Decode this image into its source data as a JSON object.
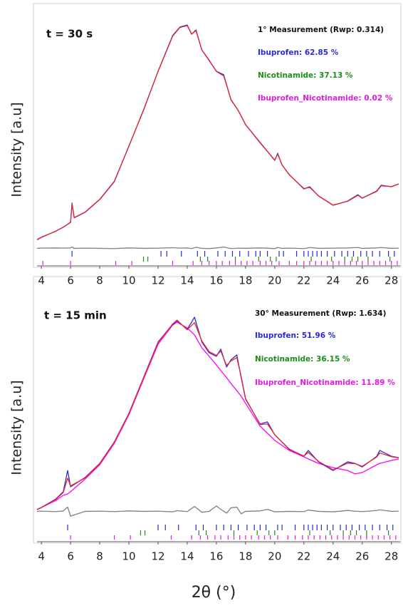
{
  "chart_data": [
    {
      "type": "line",
      "annotation": "t = 30 s",
      "measurement": "1° Measurement (Rwp: 0.314)",
      "ylabel": "Intensity [a.u]",
      "xlim": [
        3.7,
        28.6
      ],
      "ylim": [
        -10,
        105
      ],
      "xticks": [
        4,
        6,
        8,
        10,
        12,
        14,
        16,
        18,
        20,
        22,
        24,
        26,
        28
      ],
      "x": [
        3.7,
        4,
        5,
        5.5,
        6,
        6.1,
        6.25,
        7,
        8,
        9,
        10,
        11,
        12,
        13,
        13.5,
        14,
        14.3,
        14.6,
        15,
        15.5,
        16,
        16.5,
        17,
        17.5,
        18,
        19,
        20,
        20.2,
        20.5,
        21,
        22,
        22.4,
        23,
        24,
        25,
        25.7,
        26,
        27,
        27.3,
        28,
        28.5
      ],
      "series": [
        {
          "color": "#2a2ad8",
          "values": [
            2.5,
            3.6,
            6.5,
            8.2,
            10.5,
            19.2,
            12.5,
            15,
            20.8,
            28.9,
            45.1,
            61.3,
            79.1,
            95.3,
            99.2,
            100.1,
            95.9,
            97.9,
            88.8,
            84,
            79.1,
            77.5,
            66.1,
            61.3,
            54.8,
            46.7,
            38.6,
            41.8,
            36.5,
            32.1,
            25.6,
            26.6,
            22.4,
            18.2,
            20.1,
            23,
            21.4,
            24.7,
            27.3,
            26.6,
            27.9
          ]
        },
        {
          "color": "#e8262a",
          "values": [
            2.6,
            3.7,
            6.4,
            8.3,
            10.4,
            18.7,
            12.6,
            15.1,
            20.9,
            29.1,
            45.0,
            61.5,
            79.0,
            95.0,
            99.0,
            99.8,
            96.1,
            97.5,
            88.9,
            84.2,
            79.0,
            77.0,
            66.3,
            61.2,
            54.9,
            46.5,
            38.8,
            41.4,
            36.6,
            32.0,
            25.8,
            26.3,
            22.5,
            18.3,
            20.0,
            22.7,
            21.5,
            24.5,
            27.0,
            26.7,
            27.8
          ]
        },
        {
          "color": "#808080",
          "values": [
            -1.4,
            -1.3,
            -1.2,
            -1.3,
            -1.2,
            -0.8,
            -1.4,
            -1.3,
            -1.4,
            -1.5,
            -1.2,
            -1.4,
            -1.3,
            -1.1,
            -1.3,
            -1.2,
            -1.5,
            -0.9,
            -1.4,
            -1.5,
            -1.2,
            -0.8,
            -1.5,
            -1.3,
            -1.4,
            -1.2,
            -1.5,
            -1.0,
            -1.4,
            -1.3,
            -1.5,
            -1.0,
            -1.4,
            -1.3,
            -1.2,
            -1.0,
            -1.4,
            -1.2,
            -1.0,
            -1.4,
            -1.3
          ]
        }
      ],
      "phases": [
        {
          "label": "Ibuprofen: 62.85 %",
          "color": "#2a2ad8",
          "reflections": [
            6.1,
            12.2,
            12.6,
            13.6,
            14.7,
            15.2,
            16.1,
            16.6,
            17.1,
            17.6,
            18.2,
            18.7,
            19.0,
            19.5,
            20.3,
            20.6,
            21.5,
            22.0,
            22.3,
            22.6,
            22.9,
            23.2,
            23.6,
            24.1,
            24.6,
            25.0,
            25.4,
            25.9,
            26.3,
            26.7,
            27.2,
            27.8,
            28.2
          ]
        },
        {
          "label": "Nicotinamide: 37.13 %",
          "color": "#1a8f1a",
          "reflections": [
            11.0,
            11.3,
            14.9,
            15.4,
            17.3,
            18.9,
            19.7,
            20.1,
            22.5,
            23.9,
            24.8,
            25.3,
            25.7,
            26.4,
            27.9
          ]
        },
        {
          "label": "Ibuprofen_Nicotinamide: 0.02 %",
          "color": "#e21ce2",
          "reflections": [
            4.1,
            6.0,
            9.1,
            10.2,
            13.0,
            14.4,
            15.0,
            15.5,
            16.0,
            16.4,
            16.9,
            17.3,
            17.7,
            18.1,
            18.5,
            19.0,
            19.4,
            19.8,
            20.3,
            21.0,
            21.5,
            22.0,
            22.4,
            22.8,
            23.2,
            23.6,
            24.0,
            24.4,
            24.8,
            25.2,
            25.6,
            26.0,
            26.4,
            26.8,
            27.2,
            27.6,
            28.0,
            28.4
          ]
        }
      ]
    },
    {
      "type": "line",
      "annotation": "t = 15 min",
      "measurement": "30° Measurement (Rwp: 1.634)",
      "ylabel": "Intensity [a.u]",
      "xlabel": "2θ (°)",
      "xlim": [
        3.7,
        28.6
      ],
      "ylim": [
        -10,
        105
      ],
      "xticks": [
        4,
        6,
        8,
        10,
        12,
        14,
        16,
        18,
        20,
        22,
        24,
        26,
        28
      ],
      "x": [
        3.7,
        4,
        5,
        5.5,
        5.8,
        6,
        7,
        8,
        9,
        10,
        11,
        12,
        13,
        13.3,
        14,
        14.5,
        15,
        15.5,
        16,
        16.3,
        16.7,
        17,
        17.4,
        17.7,
        18,
        19,
        19.5,
        20,
        21,
        22,
        22.3,
        23,
        24,
        25,
        25.5,
        26,
        27,
        27.2,
        28,
        28.5
      ],
      "series": [
        {
          "color": "#ff00ff",
          "values": [
            4.4,
            5.3,
            8.5,
            10.8,
            11.4,
            12.4,
            18.1,
            24.5,
            34.1,
            46.9,
            62.8,
            78.5,
            87.1,
            88.4,
            85.8,
            82.7,
            76.9,
            73.1,
            69.2,
            66.7,
            63.5,
            60.9,
            57.7,
            55.2,
            52,
            41.8,
            38.6,
            35.4,
            30.9,
            28,
            27.1,
            25.1,
            23.2,
            21.9,
            20.4,
            21,
            24.5,
            25.1,
            26.4,
            27.1
          ]
        },
        {
          "color": "#2a2ad8",
          "values": [
            4.4,
            5.3,
            9.2,
            12.4,
            21.9,
            14.6,
            18.8,
            25.1,
            34.7,
            47.5,
            63.5,
            79.5,
            87.4,
            89,
            85.2,
            90.6,
            79.5,
            74.7,
            73.1,
            76.3,
            68.3,
            71.5,
            73.7,
            63.5,
            53.9,
            42.7,
            43.7,
            37.9,
            31.5,
            28.3,
            30.9,
            25.8,
            21.9,
            25.8,
            25.1,
            23.5,
            28.3,
            30.9,
            28.3,
            27.7
          ]
        },
        {
          "color": "#e8262a",
          "values": [
            4.5,
            5.4,
            9.0,
            12.1,
            18.5,
            15.0,
            18.6,
            25.0,
            34.5,
            47.3,
            63.3,
            79.2,
            87.6,
            89.3,
            85.0,
            88.2,
            80.0,
            75.2,
            73.5,
            75.4,
            69.0,
            71.0,
            72.5,
            64.0,
            54.2,
            42.5,
            42.8,
            38.0,
            31.3,
            28.4,
            30.0,
            26.0,
            22.2,
            25.2,
            25.0,
            23.8,
            28.0,
            29.8,
            28.1,
            27.6
          ]
        },
        {
          "color": "#808080",
          "values": [
            3.6,
            3.7,
            3.5,
            3.8,
            5.5,
            1.5,
            3.6,
            3.7,
            3.5,
            3.8,
            3.6,
            3.7,
            3.4,
            3.9,
            3.5,
            5.8,
            3.2,
            3.6,
            6.0,
            4.5,
            2.8,
            5.2,
            5.5,
            2.5,
            3.6,
            3.8,
            4.5,
            3.4,
            3.6,
            3.5,
            4.2,
            3.6,
            3.4,
            4.0,
            3.7,
            3.5,
            4.0,
            4.3,
            3.6,
            3.7
          ]
        }
      ],
      "phases": [
        {
          "label": "Ibuprofen: 51.96 %",
          "color": "#2a2ad8",
          "reflections": [
            5.8,
            12.0,
            12.5,
            13.4,
            14.6,
            15.1,
            16.0,
            16.5,
            17.0,
            17.5,
            18.1,
            18.6,
            19.0,
            19.4,
            20.2,
            20.5,
            21.4,
            22.0,
            22.3,
            22.6,
            22.9,
            23.2,
            23.6,
            24.0,
            24.5,
            24.9,
            25.3,
            25.8,
            26.2,
            26.7,
            27.2,
            27.7,
            28.1
          ]
        },
        {
          "label": "Nicotinamide: 36.15 %",
          "color": "#1a8f1a",
          "reflections": [
            10.8,
            11.1,
            14.8,
            15.3,
            17.2,
            18.8,
            19.6,
            20.0,
            22.4,
            23.8,
            24.7,
            25.2,
            25.6,
            26.3,
            27.8
          ]
        },
        {
          "label": "Ibuprofen_Nicotinamide: 11.89 %",
          "color": "#e21ce2",
          "reflections": [
            6.0,
            9.0,
            10.1,
            12.9,
            14.3,
            14.9,
            15.4,
            15.9,
            16.3,
            16.8,
            17.2,
            17.6,
            18.0,
            18.4,
            18.9,
            19.3,
            19.7,
            20.2,
            20.9,
            21.4,
            21.9,
            22.3,
            22.7,
            23.1,
            23.5,
            23.9,
            24.3,
            24.7,
            25.1,
            25.5,
            25.9,
            26.3,
            26.7,
            27.1,
            27.5,
            27.9,
            28.3
          ]
        }
      ]
    }
  ]
}
